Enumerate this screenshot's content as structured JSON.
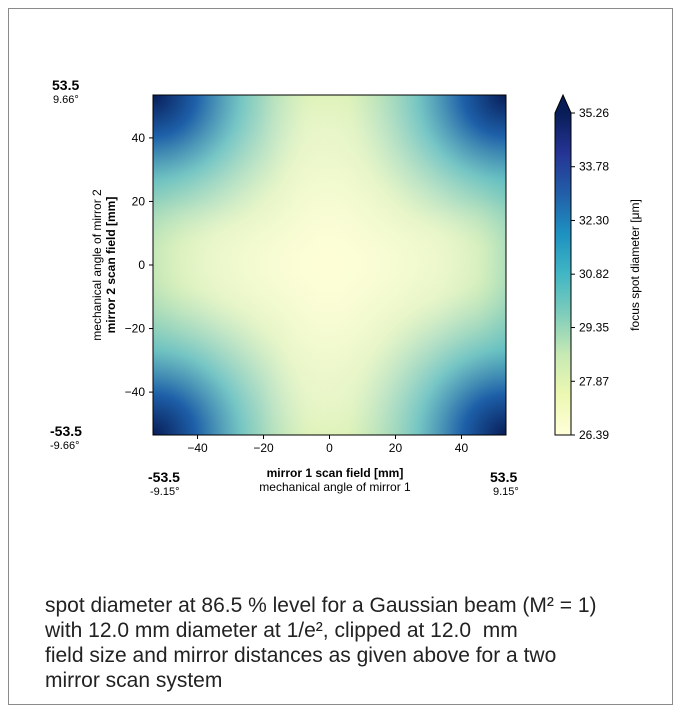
{
  "chart_data": {
    "type": "heatmap",
    "xlabel": "mirror 1 scan field [mm]",
    "xlabel_secondary": "mechanical angle of mirror 1",
    "ylabel": "mirror 2 scan field [mm]",
    "ylabel_secondary": "mechanical angle of mirror 2",
    "xlim": [
      -53.5,
      53.5
    ],
    "ylim": [
      -53.5,
      53.5
    ],
    "x_ticks": [
      -40,
      -20,
      0,
      20,
      40
    ],
    "y_ticks": [
      -40,
      -20,
      0,
      20,
      40
    ],
    "x_tick_labels": [
      "−40",
      "−20",
      "0",
      "20",
      "40"
    ],
    "y_tick_labels": [
      "−40",
      "−20",
      "0",
      "20",
      "40"
    ],
    "x_min_label": "-53.5",
    "x_min_angle": "-9.15°",
    "x_max_label": "53.5",
    "x_max_angle": "9.15°",
    "y_min_label": "-53.5",
    "y_min_angle": "-9.66°",
    "y_max_label": "53.5",
    "y_max_angle": "9.66°",
    "colorbar": {
      "label": "focus spot diameter [μm]",
      "min": 26.39,
      "max": 35.26,
      "ticks": [
        26.39,
        27.87,
        29.35,
        30.82,
        32.3,
        33.78,
        35.26
      ],
      "tick_labels": [
        "26.39",
        "27.87",
        "29.35",
        "30.82",
        "32.30",
        "33.78",
        "35.26"
      ],
      "colormap": "YlGnBu",
      "extend": "max"
    },
    "values_description_note": null,
    "center_value": 26.39,
    "corner_value": 35.26
  },
  "caption_lines": [
    "spot diameter at 86.5 % level for a Gaussian beam (M² = 1)",
    "with 12.0 mm diameter at 1/e², clipped at 12.0  mm",
    "field size and mirror distances as given above for a two",
    "mirror scan system"
  ],
  "colors": {
    "frame": "#8a8a8a",
    "text": "#222222"
  }
}
